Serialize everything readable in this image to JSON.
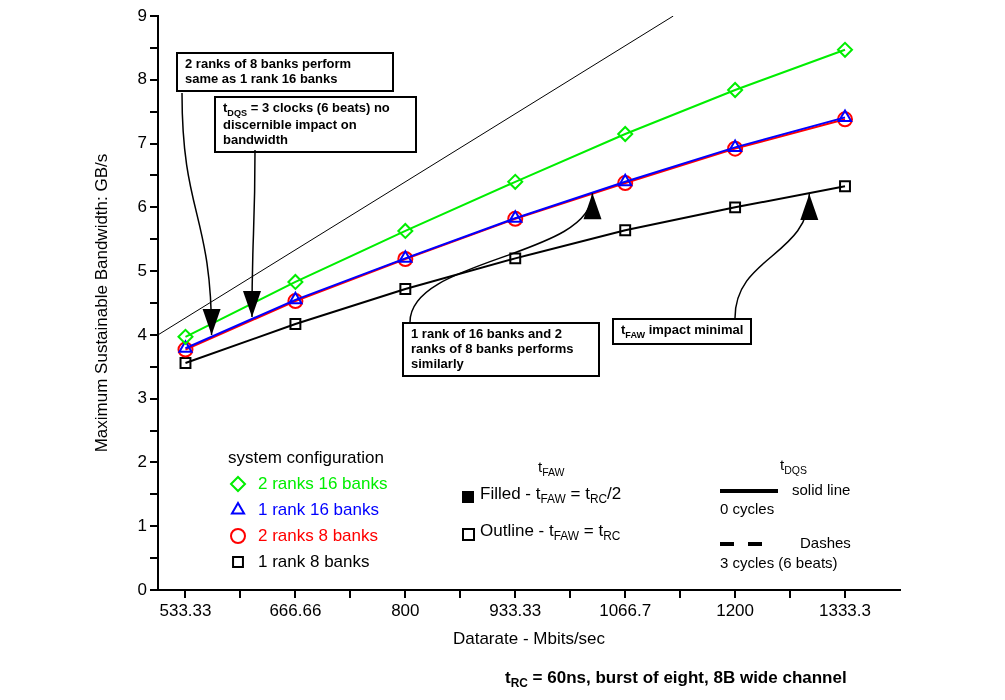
{
  "chart_data": {
    "type": "line",
    "xlabel": "Datarate - Mbits/sec",
    "ylabel": "Maximum Sustainable Bandwidth: GB/s",
    "legend_title": "system configuration",
    "x": [
      533.33,
      666.66,
      800,
      933.33,
      1066.7,
      1200,
      1333.3
    ],
    "xlim": [
      500,
      1400
    ],
    "xticks": [
      533.33,
      {
        "value": 600,
        "label": null
      },
      666.66,
      {
        "value": 733.33,
        "label": null
      },
      800,
      {
        "value": 866.67,
        "label": null
      },
      933.33,
      {
        "value": 1000,
        "label": null
      },
      1066.7,
      {
        "value": 1133.3,
        "label": null
      },
      1200,
      {
        "value": 1266.7,
        "label": null
      },
      1333.3
    ],
    "ylim": [
      0,
      9
    ],
    "yticks": [
      0,
      {
        "value": 0.5,
        "label": null
      },
      1,
      {
        "value": 1.5,
        "label": null
      },
      2,
      {
        "value": 2.5,
        "label": null
      },
      3,
      {
        "value": 3.5,
        "label": null
      },
      4,
      {
        "value": 4.5,
        "label": null
      },
      5,
      {
        "value": 5.5,
        "label": null
      },
      6,
      {
        "value": 6.5,
        "label": null
      },
      7,
      {
        "value": 7.5,
        "label": null
      },
      8,
      {
        "value": 8.5,
        "label": null
      },
      9
    ],
    "grid": false,
    "legend": "bottom left",
    "line_style": "solid",
    "series": [
      {
        "name": "2 ranks 16 banks",
        "color": "#00ee00",
        "marker": "diamond",
        "values": [
          3.97,
          4.83,
          5.63,
          6.4,
          7.15,
          7.84,
          8.47
        ]
      },
      {
        "name": "1 rank 16 banks",
        "color": "#0000ff",
        "marker": "triangle",
        "values": [
          3.79,
          4.55,
          5.2,
          5.83,
          6.4,
          6.94,
          7.41
        ]
      },
      {
        "name": "2 ranks 8 banks",
        "color": "#ff0000",
        "marker": "circle",
        "values": [
          3.77,
          4.53,
          5.19,
          5.82,
          6.38,
          6.92,
          7.38
        ]
      },
      {
        "name": "1 rank 8 banks",
        "color": "#000000",
        "marker": "square",
        "values": [
          3.56,
          4.17,
          4.72,
          5.2,
          5.64,
          6.0,
          6.33
        ]
      },
      {
        "color": "#000000",
        "marker": "none",
        "x": [
          500,
          1125
        ],
        "values": [
          4,
          9
        ]
      }
    ],
    "annotations": [
      {
        "text": "2 ranks of 8 banks perform same as 1 rank 16 banks",
        "x": 565,
        "y": 4.0
      },
      {
        "text": "t$_{DQS}$ = 3 clocks (6 beats) no discernible impact on bandwidth",
        "x": 614,
        "y": 4.28
      },
      {
        "text": "1 rank of 16 banks and 2 ranks of 8 banks performs similarly",
        "x": 1027,
        "y": 6.22
      },
      {
        "text": "t$_{FAW}$ impact minimal",
        "x": 1290,
        "y": 6.21
      },
      "t$_{RC}$ = 60ns, burst of eight, 8B wide channel",
      "t$_{FAW}$",
      "Filled - t$_{FAW}$ = t$_{RC}$/2",
      "Outline - t$_{FAW}$ = t$_{RC}$",
      "t$_{DQS}$",
      "solid line",
      "0 cycles",
      "Dashes",
      "3 cycles (6 beats)"
    ]
  }
}
